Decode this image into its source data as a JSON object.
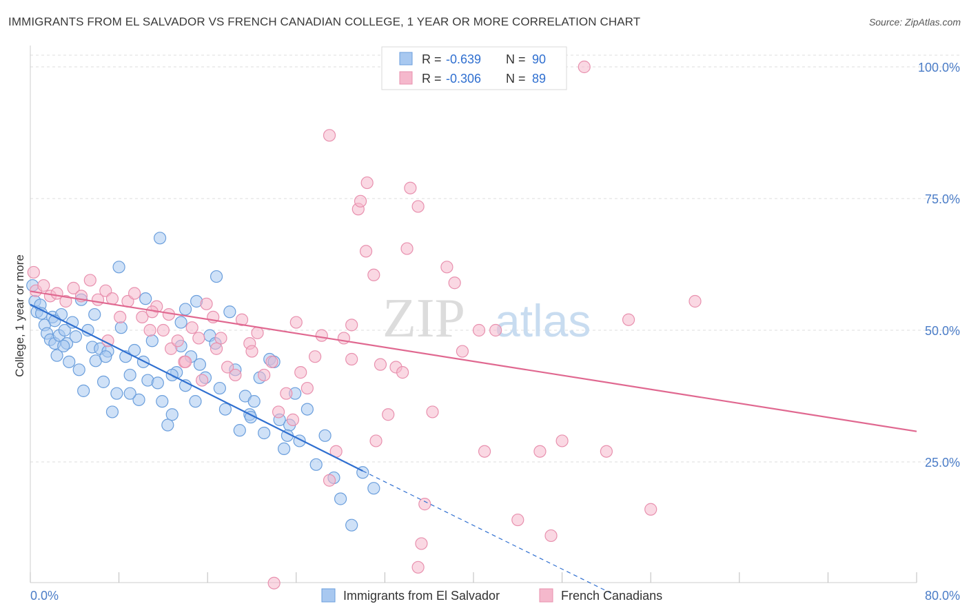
{
  "header": {
    "title": "IMMIGRANTS FROM EL SALVADOR VS FRENCH CANADIAN COLLEGE, 1 YEAR OR MORE CORRELATION CHART",
    "source": "Source: ZipAtlas.com"
  },
  "watermark": {
    "zip": "ZIP",
    "atlas": "atlas"
  },
  "legend_box": {
    "rows": [
      {
        "r_label": "R =",
        "r_value": "-0.639",
        "n_label": "N =",
        "n_value": "90",
        "color": "#a8c8f0"
      },
      {
        "r_label": "R =",
        "r_value": "-0.306",
        "n_label": "N =",
        "n_value": "89",
        "color": "#f5b8cc"
      }
    ]
  },
  "chart_data": {
    "type": "scatter",
    "title": "IMMIGRANTS FROM EL SALVADOR VS FRENCH CANADIAN COLLEGE, 1 YEAR OR MORE CORRELATION CHART",
    "xlabel": "",
    "ylabel": "College, 1 year or more",
    "xlim": [
      0,
      80
    ],
    "ylim": [
      0,
      100
    ],
    "x_tick_labels": [
      "0.0%",
      "80.0%"
    ],
    "y_ticks": [
      25,
      50,
      75,
      100
    ],
    "y_tick_labels": [
      "25.0%",
      "50.0%",
      "75.0%",
      "100.0%"
    ],
    "grid": true,
    "legend_position": "bottom",
    "colors": {
      "blue_fill": "#a8c8f0",
      "blue_stroke": "#6a9edc",
      "blue_line": "#2f6fd0",
      "pink_fill": "#f5b8cc",
      "pink_stroke": "#e890ae",
      "pink_line": "#e06890",
      "axis_text": "#4a7cc7"
    },
    "series": [
      {
        "name": "Immigrants from El Salvador",
        "color": "#a8c8f0",
        "points": [
          [
            0.2,
            58.5
          ],
          [
            0.4,
            55.5
          ],
          [
            0.6,
            53.5
          ],
          [
            0.9,
            54.8
          ],
          [
            1.0,
            53.2
          ],
          [
            1.3,
            51.0
          ],
          [
            1.5,
            49.4
          ],
          [
            1.8,
            48.2
          ],
          [
            2.0,
            52.5
          ],
          [
            2.2,
            47.5
          ],
          [
            2.4,
            45.2
          ],
          [
            2.6,
            49.0
          ],
          [
            2.8,
            53.0
          ],
          [
            3.1,
            50.0
          ],
          [
            3.3,
            47.5
          ],
          [
            3.5,
            44.0
          ],
          [
            3.8,
            51.5
          ],
          [
            4.1,
            48.8
          ],
          [
            4.4,
            42.5
          ],
          [
            4.8,
            38.5
          ],
          [
            5.2,
            50.0
          ],
          [
            5.6,
            46.8
          ],
          [
            5.9,
            44.2
          ],
          [
            6.3,
            46.5
          ],
          [
            6.6,
            40.2
          ],
          [
            7.0,
            46.0
          ],
          [
            7.4,
            34.5
          ],
          [
            7.8,
            38.0
          ],
          [
            8.2,
            50.5
          ],
          [
            8.6,
            45.0
          ],
          [
            9.0,
            41.5
          ],
          [
            9.4,
            46.2
          ],
          [
            9.8,
            36.8
          ],
          [
            10.2,
            44.0
          ],
          [
            10.6,
            40.5
          ],
          [
            11.0,
            48.0
          ],
          [
            11.5,
            40.0
          ],
          [
            11.9,
            36.5
          ],
          [
            12.4,
            32.0
          ],
          [
            12.8,
            34.0
          ],
          [
            13.2,
            42.0
          ],
          [
            13.6,
            47.0
          ],
          [
            14.0,
            39.5
          ],
          [
            14.5,
            45.0
          ],
          [
            14.9,
            36.5
          ],
          [
            15.3,
            43.5
          ],
          [
            15.8,
            41.0
          ],
          [
            16.2,
            49.0
          ],
          [
            16.7,
            47.5
          ],
          [
            17.1,
            39.0
          ],
          [
            17.6,
            35.0
          ],
          [
            18.0,
            53.5
          ],
          [
            18.5,
            42.5
          ],
          [
            18.9,
            31.0
          ],
          [
            19.4,
            37.5
          ],
          [
            19.8,
            34.0
          ],
          [
            20.2,
            36.5
          ],
          [
            20.7,
            41.0
          ],
          [
            21.1,
            30.5
          ],
          [
            21.6,
            44.5
          ],
          [
            22.0,
            44.0
          ],
          [
            22.5,
            33.0
          ],
          [
            22.9,
            27.5
          ],
          [
            23.4,
            32.0
          ],
          [
            23.9,
            38.0
          ],
          [
            24.3,
            29.0
          ],
          [
            25.0,
            35.0
          ],
          [
            25.8,
            24.5
          ],
          [
            26.6,
            30.0
          ],
          [
            27.4,
            22.0
          ],
          [
            28.0,
            18.0
          ],
          [
            29.0,
            13.0
          ],
          [
            30.0,
            23.0
          ],
          [
            31.0,
            20.0
          ],
          [
            8.0,
            62.0
          ],
          [
            11.7,
            67.5
          ],
          [
            16.8,
            60.2
          ],
          [
            5.8,
            53.0
          ],
          [
            9.0,
            38.0
          ],
          [
            12.8,
            41.5
          ],
          [
            14.0,
            54.0
          ],
          [
            15.0,
            55.5
          ],
          [
            3.0,
            47.0
          ],
          [
            6.8,
            45.0
          ],
          [
            2.2,
            51.8
          ],
          [
            4.6,
            55.8
          ],
          [
            10.4,
            56.0
          ],
          [
            13.6,
            51.5
          ],
          [
            19.9,
            33.5
          ],
          [
            23.2,
            30.0
          ]
        ]
      },
      {
        "name": "French Canadians",
        "color": "#f5b8cc",
        "points": [
          [
            0.3,
            61.0
          ],
          [
            0.5,
            57.5
          ],
          [
            1.2,
            58.5
          ],
          [
            1.8,
            56.5
          ],
          [
            2.4,
            57.0
          ],
          [
            3.2,
            55.5
          ],
          [
            3.9,
            58.0
          ],
          [
            4.6,
            56.5
          ],
          [
            5.4,
            59.5
          ],
          [
            6.1,
            55.8
          ],
          [
            6.8,
            57.5
          ],
          [
            7.4,
            56.0
          ],
          [
            8.1,
            52.5
          ],
          [
            8.8,
            55.5
          ],
          [
            9.4,
            57.0
          ],
          [
            10.1,
            52.5
          ],
          [
            10.8,
            50.0
          ],
          [
            11.4,
            54.5
          ],
          [
            12.0,
            50.0
          ],
          [
            12.7,
            46.5
          ],
          [
            13.3,
            48.0
          ],
          [
            13.9,
            44.0
          ],
          [
            14.6,
            50.5
          ],
          [
            15.2,
            48.5
          ],
          [
            15.9,
            55.0
          ],
          [
            16.5,
            52.5
          ],
          [
            17.2,
            48.5
          ],
          [
            17.8,
            43.0
          ],
          [
            18.5,
            41.5
          ],
          [
            19.1,
            52.0
          ],
          [
            19.8,
            47.5
          ],
          [
            20.5,
            49.5
          ],
          [
            21.1,
            41.5
          ],
          [
            21.8,
            44.0
          ],
          [
            22.4,
            34.5
          ],
          [
            23.1,
            38.0
          ],
          [
            23.7,
            33.0
          ],
          [
            24.4,
            42.0
          ],
          [
            25.0,
            39.0
          ],
          [
            25.7,
            45.0
          ],
          [
            26.3,
            49.0
          ],
          [
            27.0,
            21.5
          ],
          [
            27.6,
            27.0
          ],
          [
            28.3,
            48.5
          ],
          [
            29.0,
            44.5
          ],
          [
            29.6,
            73.0
          ],
          [
            30.3,
            65.0
          ],
          [
            31.0,
            60.5
          ],
          [
            31.6,
            43.5
          ],
          [
            32.3,
            34.0
          ],
          [
            33.0,
            43.0
          ],
          [
            33.6,
            42.0
          ],
          [
            34.3,
            77.0
          ],
          [
            35.0,
            73.5
          ],
          [
            35.6,
            17.0
          ],
          [
            36.3,
            34.5
          ],
          [
            37.0,
            99.0
          ],
          [
            37.6,
            62.0
          ],
          [
            38.3,
            59.0
          ],
          [
            39.0,
            46.0
          ],
          [
            40.5,
            50.0
          ],
          [
            41.0,
            27.0
          ],
          [
            42.0,
            50.0
          ],
          [
            44.0,
            14.0
          ],
          [
            46.0,
            27.0
          ],
          [
            47.0,
            11.0
          ],
          [
            48.0,
            29.0
          ],
          [
            50.0,
            100.0
          ],
          [
            52.0,
            27.0
          ],
          [
            54.0,
            52.0
          ],
          [
            56.0,
            16.0
          ],
          [
            60.0,
            55.5
          ],
          [
            27.0,
            87.0
          ],
          [
            29.8,
            74.5
          ],
          [
            34.0,
            65.5
          ],
          [
            29.0,
            51.0
          ],
          [
            31.2,
            29.0
          ],
          [
            35.3,
            9.5
          ],
          [
            22.0,
            2.0
          ],
          [
            30.4,
            78.0
          ],
          [
            7.0,
            48.0
          ],
          [
            14.0,
            44.0
          ],
          [
            12.5,
            53.0
          ],
          [
            15.5,
            40.5
          ],
          [
            20.0,
            46.0
          ],
          [
            24.0,
            51.5
          ],
          [
            11.0,
            53.5
          ],
          [
            16.8,
            46.5
          ],
          [
            35.0,
            5.0
          ]
        ]
      }
    ],
    "trend_lines": [
      {
        "series": "Immigrants from El Salvador",
        "x": [
          0,
          30
        ],
        "y": [
          54.9,
          23.3
        ],
        "dashed_extension": [
          [
            30,
            23.3
          ],
          [
            52.5,
            0
          ]
        ]
      },
      {
        "series": "French Canadians",
        "x": [
          0,
          80
        ],
        "y": [
          57.4,
          30.8
        ]
      }
    ]
  }
}
